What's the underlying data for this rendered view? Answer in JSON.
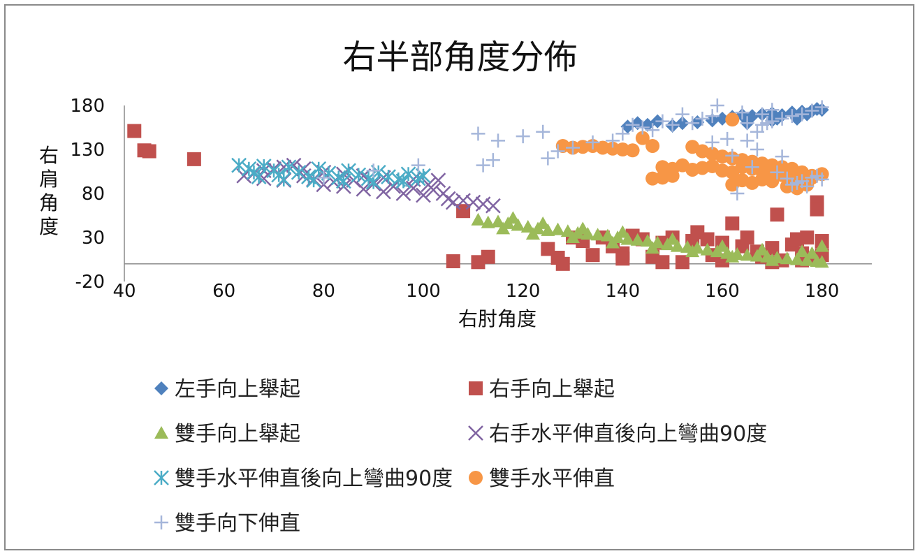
{
  "chart_data": {
    "type": "scatter",
    "title": "右半部角度分佈",
    "xlabel": "右肘角度",
    "ylabel": "右肩角度",
    "xlim": [
      40,
      190
    ],
    "ylim": [
      -20,
      180
    ],
    "xticks": [
      "40",
      "60",
      "80",
      "100",
      "120",
      "140",
      "160",
      "180"
    ],
    "yticks": [
      "180",
      "130",
      "80",
      "30",
      "-20"
    ],
    "legend_position": "bottom",
    "series": [
      {
        "name": "左手向上舉起",
        "marker": "diamond",
        "color": "#4F81BD",
        "points": [
          [
            141,
            156
          ],
          [
            143,
            160
          ],
          [
            145,
            158
          ],
          [
            147,
            162
          ],
          [
            150,
            157
          ],
          [
            152,
            160
          ],
          [
            155,
            161
          ],
          [
            158,
            163
          ],
          [
            160,
            165
          ],
          [
            162,
            167
          ],
          [
            164,
            169
          ],
          [
            166,
            168
          ],
          [
            168,
            170
          ],
          [
            170,
            171
          ],
          [
            172,
            169
          ],
          [
            174,
            172
          ],
          [
            176,
            173
          ],
          [
            178,
            174
          ],
          [
            179,
            176
          ],
          [
            180,
            175
          ],
          [
            175,
            165
          ],
          [
            170,
            163
          ],
          [
            165,
            160
          ],
          [
            171,
            165
          ],
          [
            177,
            170
          ]
        ]
      },
      {
        "name": "右手向上舉起",
        "marker": "square",
        "color": "#C0504D",
        "points": [
          [
            42,
            151
          ],
          [
            44,
            129
          ],
          [
            45,
            128
          ],
          [
            54,
            119
          ],
          [
            108,
            60
          ],
          [
            106,
            3
          ],
          [
            111,
            2
          ],
          [
            113,
            8
          ],
          [
            125,
            17
          ],
          [
            127,
            7
          ],
          [
            128,
            0
          ],
          [
            130,
            30
          ],
          [
            132,
            26
          ],
          [
            134,
            10
          ],
          [
            136,
            30
          ],
          [
            138,
            20
          ],
          [
            140,
            12
          ],
          [
            142,
            32
          ],
          [
            144,
            28
          ],
          [
            146,
            8
          ],
          [
            148,
            24
          ],
          [
            150,
            30
          ],
          [
            152,
            2
          ],
          [
            154,
            26
          ],
          [
            155,
            36
          ],
          [
            157,
            28
          ],
          [
            158,
            10
          ],
          [
            160,
            24
          ],
          [
            162,
            46
          ],
          [
            164,
            20
          ],
          [
            165,
            30
          ],
          [
            167,
            14
          ],
          [
            168,
            8
          ],
          [
            170,
            18
          ],
          [
            171,
            56
          ],
          [
            172,
            4
          ],
          [
            174,
            22
          ],
          [
            175,
            28
          ],
          [
            176,
            12
          ],
          [
            177,
            30
          ],
          [
            178,
            6
          ],
          [
            179,
            70
          ],
          [
            179,
            62
          ],
          [
            180,
            26
          ],
          [
            180,
            10
          ],
          [
            176,
            4
          ],
          [
            170,
            2
          ],
          [
            160,
            4
          ],
          [
            148,
            2
          ],
          [
            140,
            6
          ]
        ]
      },
      {
        "name": "雙手向上舉起",
        "marker": "triangle",
        "color": "#9BBB59",
        "points": [
          [
            111,
            50
          ],
          [
            113,
            47
          ],
          [
            115,
            48
          ],
          [
            117,
            46
          ],
          [
            119,
            44
          ],
          [
            121,
            42
          ],
          [
            123,
            40
          ],
          [
            125,
            38
          ],
          [
            127,
            39
          ],
          [
            129,
            37
          ],
          [
            131,
            35
          ],
          [
            133,
            34
          ],
          [
            135,
            33
          ],
          [
            137,
            32
          ],
          [
            139,
            30
          ],
          [
            141,
            28
          ],
          [
            143,
            27
          ],
          [
            145,
            26
          ],
          [
            147,
            24
          ],
          [
            149,
            22
          ],
          [
            151,
            20
          ],
          [
            153,
            19
          ],
          [
            155,
            18
          ],
          [
            157,
            16
          ],
          [
            159,
            14
          ],
          [
            161,
            12
          ],
          [
            163,
            11
          ],
          [
            165,
            10
          ],
          [
            167,
            9
          ],
          [
            169,
            8
          ],
          [
            171,
            7
          ],
          [
            173,
            6
          ],
          [
            175,
            5
          ],
          [
            177,
            4
          ],
          [
            179,
            3
          ],
          [
            180,
            2
          ],
          [
            116,
            40
          ],
          [
            122,
            34
          ],
          [
            130,
            30
          ],
          [
            138,
            24
          ],
          [
            146,
            18
          ],
          [
            154,
            14
          ],
          [
            162,
            8
          ],
          [
            170,
            4
          ],
          [
            178,
            12
          ],
          [
            180,
            20
          ],
          [
            176,
            14
          ],
          [
            168,
            16
          ],
          [
            160,
            20
          ],
          [
            150,
            28
          ],
          [
            140,
            36
          ],
          [
            132,
            40
          ],
          [
            124,
            46
          ],
          [
            118,
            52
          ]
        ]
      },
      {
        "name": "右手水平伸直後向上彎曲90度",
        "marker": "x",
        "color": "#8064A2",
        "points": [
          [
            64,
            100
          ],
          [
            66,
            103
          ],
          [
            68,
            97
          ],
          [
            70,
            108
          ],
          [
            72,
            95
          ],
          [
            74,
            112
          ],
          [
            76,
            100
          ],
          [
            78,
            96
          ],
          [
            80,
            90
          ],
          [
            82,
            93
          ],
          [
            84,
            88
          ],
          [
            86,
            95
          ],
          [
            88,
            85
          ],
          [
            90,
            91
          ],
          [
            92,
            82
          ],
          [
            94,
            88
          ],
          [
            96,
            80
          ],
          [
            98,
            86
          ],
          [
            100,
            78
          ],
          [
            101,
            90
          ],
          [
            102,
            84
          ],
          [
            103,
            95
          ],
          [
            104,
            80
          ],
          [
            105,
            74
          ],
          [
            106,
            70
          ],
          [
            108,
            72
          ],
          [
            110,
            70
          ],
          [
            112,
            68
          ],
          [
            114,
            66
          ],
          [
            100,
            100
          ],
          [
            98,
            96
          ],
          [
            96,
            94
          ],
          [
            92,
            98
          ],
          [
            88,
            100
          ],
          [
            84,
            102
          ],
          [
            80,
            104
          ],
          [
            76,
            108
          ],
          [
            72,
            110
          ],
          [
            68,
            106
          ]
        ]
      },
      {
        "name": "雙手水平伸直後向上彎曲90度",
        "marker": "star",
        "color": "#4BACC6",
        "points": [
          [
            63,
            112
          ],
          [
            65,
            108
          ],
          [
            66,
            104
          ],
          [
            68,
            111
          ],
          [
            70,
            106
          ],
          [
            71,
            101
          ],
          [
            73,
            110
          ],
          [
            75,
            104
          ],
          [
            77,
            99
          ],
          [
            79,
            108
          ],
          [
            81,
            103
          ],
          [
            83,
            98
          ],
          [
            85,
            106
          ],
          [
            87,
            101
          ],
          [
            89,
            97
          ],
          [
            91,
            104
          ],
          [
            93,
            99
          ],
          [
            95,
            96
          ],
          [
            97,
            102
          ],
          [
            99,
            97
          ],
          [
            100,
            100
          ],
          [
            67,
            99
          ],
          [
            72,
            96
          ],
          [
            78,
            95
          ],
          [
            84,
            94
          ],
          [
            90,
            93
          ],
          [
            96,
            94
          ]
        ]
      },
      {
        "name": "雙手水平伸直",
        "marker": "circle",
        "color": "#F79646",
        "points": [
          [
            128,
            134
          ],
          [
            130,
            132
          ],
          [
            132,
            133
          ],
          [
            134,
            134
          ],
          [
            136,
            132
          ],
          [
            138,
            131
          ],
          [
            140,
            130
          ],
          [
            142,
            129
          ],
          [
            144,
            143
          ],
          [
            146,
            134
          ],
          [
            148,
            110
          ],
          [
            150,
            108
          ],
          [
            152,
            112
          ],
          [
            154,
            107
          ],
          [
            156,
            109
          ],
          [
            158,
            111
          ],
          [
            160,
            106
          ],
          [
            162,
            104
          ],
          [
            164,
            110
          ],
          [
            166,
            108
          ],
          [
            168,
            105
          ],
          [
            170,
            103
          ],
          [
            172,
            101
          ],
          [
            174,
            99
          ],
          [
            176,
            96
          ],
          [
            178,
            100
          ],
          [
            180,
            102
          ],
          [
            154,
            133
          ],
          [
            156,
            128
          ],
          [
            158,
            125
          ],
          [
            160,
            122
          ],
          [
            162,
            120
          ],
          [
            164,
            118
          ],
          [
            166,
            116
          ],
          [
            168,
            114
          ],
          [
            170,
            112
          ],
          [
            172,
            110
          ],
          [
            174,
            108
          ],
          [
            176,
            104
          ],
          [
            178,
            98
          ],
          [
            173,
            88
          ],
          [
            175,
            86
          ],
          [
            177,
            90
          ],
          [
            162,
            90
          ],
          [
            164,
            95
          ],
          [
            166,
            92
          ],
          [
            168,
            96
          ],
          [
            170,
            94
          ],
          [
            150,
            100
          ],
          [
            148,
            98
          ],
          [
            146,
            97
          ],
          [
            162,
            164
          ]
        ]
      },
      {
        "name": "雙手向下伸直",
        "marker": "plus",
        "color": "#A5B6DA",
        "points": [
          [
            80,
            98
          ],
          [
            90,
            106
          ],
          [
            99,
            112
          ],
          [
            111,
            148
          ],
          [
            112,
            112
          ],
          [
            114,
            118
          ],
          [
            115,
            140
          ],
          [
            120,
            145
          ],
          [
            124,
            150
          ],
          [
            125,
            120
          ],
          [
            127,
            128
          ],
          [
            130,
            132
          ],
          [
            134,
            138
          ],
          [
            138,
            140
          ],
          [
            140,
            148
          ],
          [
            142,
            158
          ],
          [
            144,
            155
          ],
          [
            146,
            152
          ],
          [
            148,
            162
          ],
          [
            150,
            158
          ],
          [
            152,
            170
          ],
          [
            154,
            160
          ],
          [
            156,
            165
          ],
          [
            158,
            168
          ],
          [
            159,
            180
          ],
          [
            161,
            142
          ],
          [
            162,
            123
          ],
          [
            163,
            80
          ],
          [
            164,
            172
          ],
          [
            165,
            160
          ],
          [
            166,
            110
          ],
          [
            167,
            150
          ],
          [
            168,
            170
          ],
          [
            169,
            160
          ],
          [
            170,
            175
          ],
          [
            171,
            104
          ],
          [
            172,
            122
          ],
          [
            173,
            97
          ],
          [
            174,
            90
          ],
          [
            175,
            92
          ],
          [
            176,
            94
          ],
          [
            177,
            88
          ],
          [
            178,
            98
          ],
          [
            179,
            100
          ],
          [
            180,
            96
          ],
          [
            180,
            178
          ],
          [
            178,
            174
          ],
          [
            176,
            170
          ],
          [
            174,
            168
          ],
          [
            172,
            165
          ],
          [
            170,
            162
          ],
          [
            168,
            158
          ],
          [
            165,
            140
          ],
          [
            167,
            130
          ],
          [
            158,
            138
          ]
        ]
      }
    ]
  }
}
